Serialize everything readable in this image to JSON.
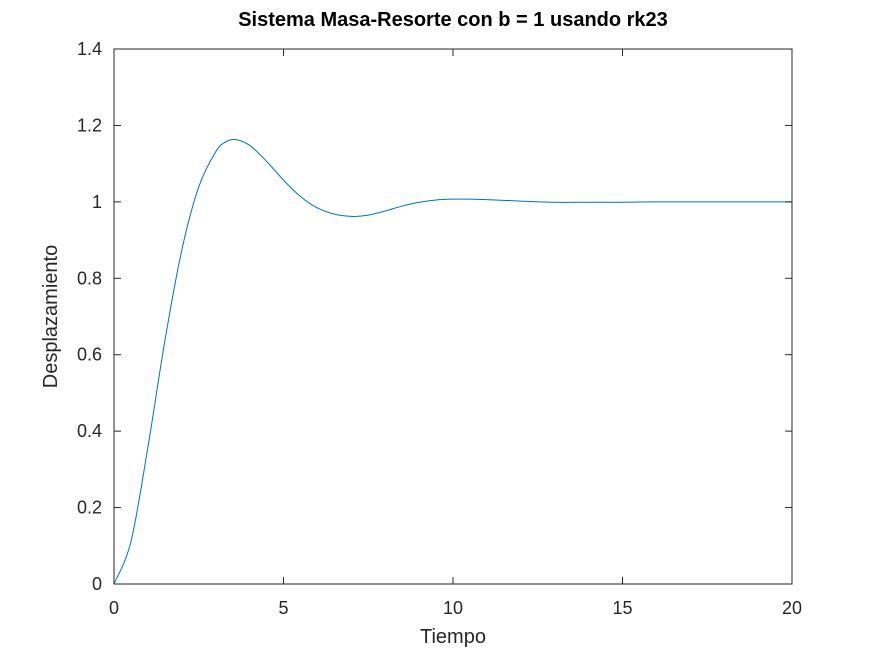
{
  "chart_data": {
    "type": "line",
    "title": "Sistema Masa-Resorte con b = 1 usando rk23",
    "xlabel": "Tiempo",
    "ylabel": "Desplazamiento",
    "xlim": [
      0,
      20
    ],
    "ylim": [
      0,
      1.4
    ],
    "xticks": [
      0,
      5,
      10,
      15,
      20
    ],
    "xtick_labels": [
      "0",
      "5",
      "10",
      "15",
      "20"
    ],
    "yticks": [
      0,
      0.2,
      0.4,
      0.6,
      0.8,
      1,
      1.2,
      1.4
    ],
    "ytick_labels": [
      "0",
      "0.2",
      "0.4",
      "0.6",
      "0.8",
      "1",
      "1.2",
      "1.4"
    ],
    "grid": false,
    "series": [
      {
        "color": "#0072bd",
        "x": [
          0,
          0.5,
          1,
          1.5,
          2,
          2.5,
          3,
          3.3,
          3.6,
          4,
          4.5,
          5,
          5.5,
          6,
          6.5,
          7,
          7.3,
          7.6,
          8,
          8.5,
          9,
          9.5,
          10,
          10.5,
          10.9,
          11.5,
          12,
          13,
          14,
          15,
          16,
          17,
          18,
          19,
          20
        ],
        "y": [
          0,
          0.111,
          0.358,
          0.636,
          0.874,
          1.039,
          1.131,
          1.157,
          1.163,
          1.148,
          1.106,
          1.057,
          1.014,
          0.984,
          0.968,
          0.962,
          0.963,
          0.967,
          0.976,
          0.989,
          0.999,
          1.005,
          1.007,
          1.007,
          1.006,
          1.004,
          1.002,
          0.999,
          0.999,
          0.999,
          1.0,
          1.0,
          1.0,
          1.0,
          1.0
        ]
      }
    ]
  }
}
